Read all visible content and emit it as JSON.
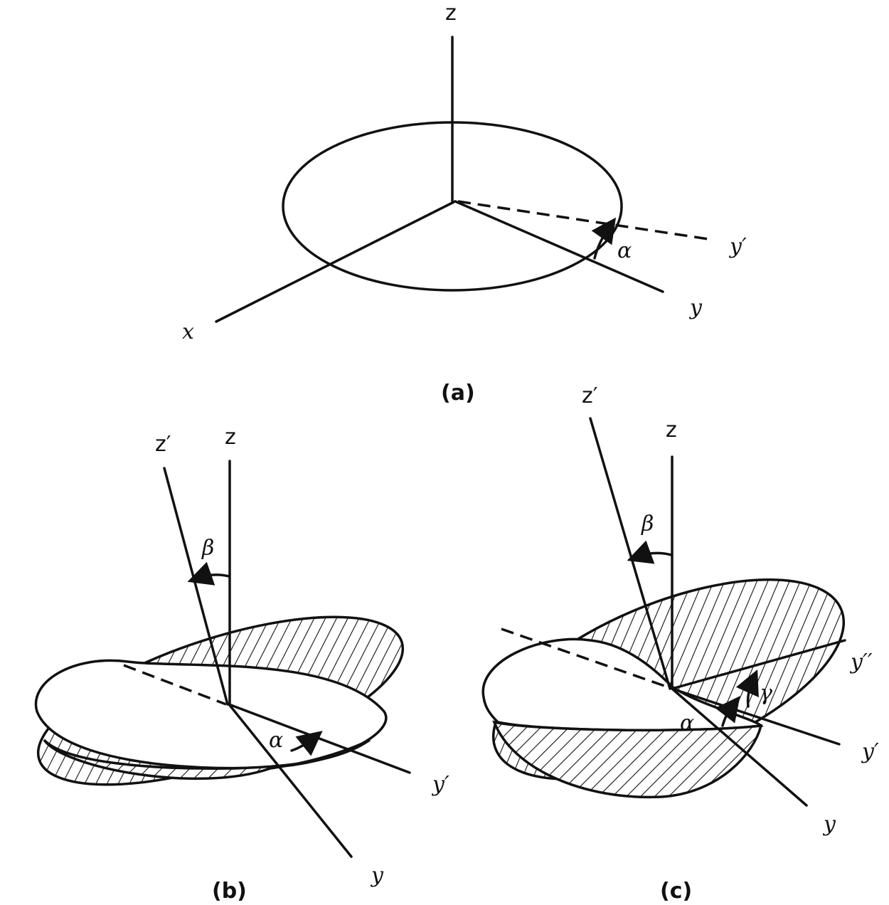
{
  "panels": {
    "a": {
      "caption": "(a)",
      "labels": {
        "z": "z",
        "x": "x",
        "y": "y",
        "y_prime": "y′",
        "alpha": "α"
      }
    },
    "b": {
      "caption": "(b)",
      "labels": {
        "z": "z",
        "z_prime": "z′",
        "beta": "β",
        "alpha": "α",
        "y_prime": "y′",
        "y": "y"
      }
    },
    "c": {
      "caption": "(c)",
      "labels": {
        "z": "z",
        "z_prime": "z′",
        "beta": "β",
        "alpha": "α",
        "gamma": "γ",
        "y_double_prime": "y′′",
        "y_prime": "y′",
        "y": "y"
      }
    }
  }
}
